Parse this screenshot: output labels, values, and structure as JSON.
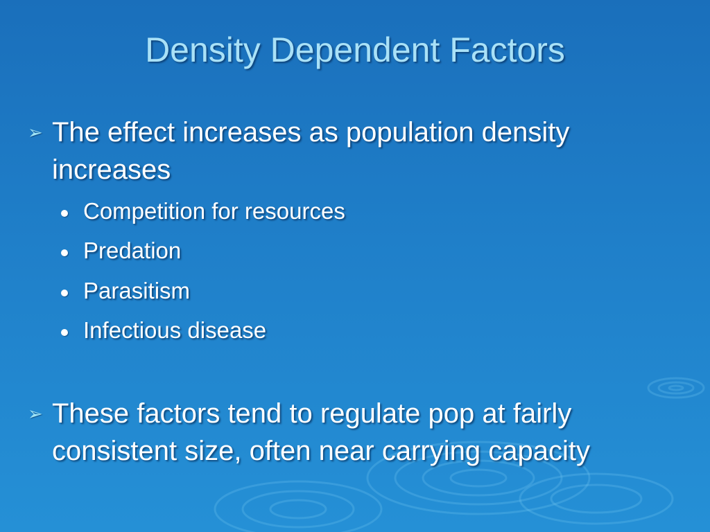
{
  "slide": {
    "title": "Density Dependent Factors",
    "bullets": [
      {
        "text": "The effect increases as population density increases",
        "sub_bullets": [
          "Competition for resources",
          "Predation",
          "Parasitism",
          "Infectious disease"
        ]
      },
      {
        "text": "These factors tend to regulate pop at fairly consistent size, often near carrying capacity",
        "sub_bullets": []
      }
    ],
    "arrow_bullet_icon": "arrow-bullet-icon",
    "dot_bullet_icon": "dot-bullet-icon",
    "colors": {
      "background_top": "#1a6fbb",
      "background_bottom": "#2590d6",
      "title": "#a9e1f7",
      "text": "#ffffff",
      "arrow": "#9fe3f5"
    }
  }
}
